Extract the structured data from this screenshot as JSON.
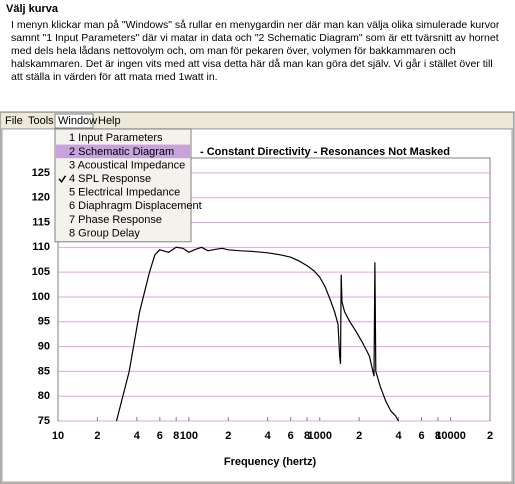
{
  "heading": "Välj kurva",
  "paragraph": "I menyn klickar man på \"Windows\" så rullar en menygardin ner där man kan välja olika simulerade kurvor samnt \"1 Input Parameters\" där vi matar in data och \"2 Schematic Diagram\" som är ett tvärsnitt av hornet med dels hela lådans nettovolym och, om man för pekaren över, volymen för bakkammaren och halskammaren. Det är ingen vits med att visa detta här då man kan göra det själv. Vi går i stället över till att ställa in värden för att mata med 1watt in.",
  "menu_bar": [
    "File",
    "Tools",
    "Window",
    "Help"
  ],
  "menu": {
    "items": [
      "1 Input Parameters",
      "2 Schematic Diagram",
      "3 Acoustical Impedance",
      "4 SPL Response",
      "5 Electrical Impedance",
      "6 Diaphragm Displacement",
      "7 Phase Response",
      "8 Group Delay"
    ],
    "checked": 3,
    "highlighted": 1
  },
  "chart_data": {
    "type": "line",
    "title": "- Constant Directivity - Resonances Not Masked",
    "x_label": "Frequency (hertz)",
    "x": [
      28,
      35,
      42,
      50,
      55,
      60,
      70,
      80,
      90,
      100,
      110,
      125,
      140,
      160,
      180,
      200,
      250,
      300,
      400,
      500,
      600,
      700,
      800,
      900,
      1000,
      1100,
      1200,
      1300,
      1380,
      1420,
      1440,
      1460,
      1480,
      1550,
      1700,
      1900,
      2100,
      2300,
      2400,
      2600,
      2640,
      2680,
      2900,
      3200,
      3500,
      3800,
      4000
    ],
    "series": [
      {
        "color": "#000000",
        "values": [
          75,
          85,
          97,
          105,
          108.5,
          109.5,
          109,
          110,
          109.8,
          109,
          109.5,
          110,
          109.3,
          109.6,
          109.8,
          109.5,
          109.3,
          109.2,
          108.9,
          108.5,
          108,
          107.2,
          106.3,
          105.3,
          104,
          102,
          99.5,
          97,
          94.5,
          88,
          86.5,
          104.5,
          99,
          97,
          95,
          93,
          91,
          89,
          88,
          84,
          107,
          85,
          82,
          79,
          77,
          76,
          75
        ]
      }
    ],
    "xlim": [
      10,
      20000
    ],
    "ylim": [
      75,
      128
    ],
    "log_x": true,
    "grid": true,
    "grid_color": "#e6a0e6",
    "xticks": [
      10,
      {
        "value": 20,
        "label": "2"
      },
      {
        "value": 40,
        "label": "4"
      },
      {
        "value": 60,
        "label": "6"
      },
      {
        "value": 80,
        "label": "8"
      },
      100,
      {
        "value": 200,
        "label": "2"
      },
      {
        "value": 400,
        "label": "4"
      },
      {
        "value": 600,
        "label": "6"
      },
      {
        "value": 800,
        "label": "8"
      },
      1000,
      {
        "value": 2000,
        "label": "2"
      },
      {
        "value": 4000,
        "label": "4"
      },
      {
        "value": 6000,
        "label": "6"
      },
      {
        "value": 8000,
        "label": "8"
      },
      10000,
      {
        "value": 20000,
        "label": "2"
      }
    ],
    "yticks": [
      75,
      80,
      85,
      90,
      95,
      100,
      105,
      110,
      115,
      120,
      125
    ]
  }
}
